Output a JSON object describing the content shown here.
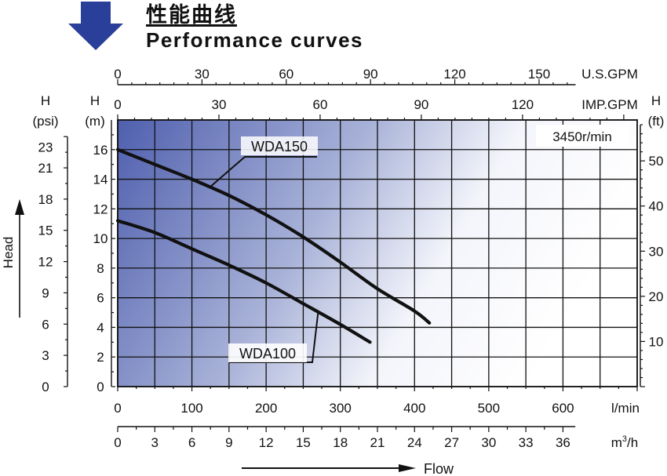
{
  "header": {
    "title_cn": "性能曲线",
    "title_en": "Performance curves",
    "arrow_icon": "down-arrow-icon",
    "arrow_color": "#2a3f9a"
  },
  "chart_data": {
    "type": "line",
    "title": "Performance curves",
    "speed_label": "3450r/min",
    "x_primary": {
      "unit": "l/min",
      "range": [
        0,
        700
      ],
      "ticks": [
        0,
        100,
        200,
        300,
        400,
        500,
        600
      ]
    },
    "x_m3h": {
      "unit": "m³/h",
      "unit_base": "m",
      "unit_sup": "3",
      "unit_suffix": "/h",
      "ticks": [
        0,
        3,
        6,
        9,
        12,
        15,
        18,
        21,
        24,
        27,
        30,
        33,
        36
      ]
    },
    "x_usgpm": {
      "unit": "U.S.GPM",
      "ticks": [
        0,
        30,
        60,
        90,
        120,
        150
      ]
    },
    "x_impgpm": {
      "unit": "IMP.GPM",
      "ticks": [
        0,
        30,
        60,
        90,
        120
      ]
    },
    "y_m": {
      "header": "H",
      "unit": "(m)",
      "range": [
        0,
        18
      ],
      "ticks": [
        0,
        2,
        4,
        6,
        8,
        10,
        12,
        14,
        16
      ]
    },
    "y_psi": {
      "header": "H",
      "unit": "(psi)",
      "ticks": [
        0,
        3,
        6,
        9,
        12,
        15,
        18,
        21,
        23
      ]
    },
    "y_ft": {
      "header": "H",
      "unit": "(ft)",
      "ticks": [
        10,
        20,
        30,
        40,
        50
      ]
    },
    "ylabel": "Head",
    "xlabel": "Flow",
    "grid": true,
    "series": [
      {
        "name": "WDA150",
        "x": [
          0,
          50,
          100,
          150,
          200,
          250,
          300,
          350,
          400,
          420
        ],
        "y": [
          16,
          15,
          14,
          12.9,
          11.6,
          10.1,
          8.4,
          6.6,
          5.1,
          4.3
        ]
      },
      {
        "name": "WDA100",
        "x": [
          0,
          50,
          100,
          150,
          200,
          250,
          300,
          340
        ],
        "y": [
          11.2,
          10.4,
          9.3,
          8.2,
          7,
          5.6,
          4.2,
          3
        ]
      }
    ],
    "colors": {
      "gradient_dark": "#4f5fae",
      "gradient_light": "#ffffff",
      "curve": "#111111",
      "grid": "#111111"
    }
  }
}
